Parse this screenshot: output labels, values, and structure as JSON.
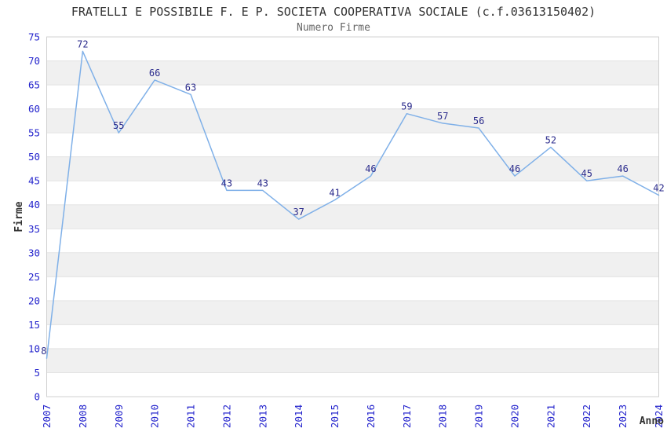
{
  "header": {
    "title": "FRATELLI E POSSIBILE F. E P. SOCIETA COOPERATIVA SOCIALE (c.f.03613150402)",
    "subtitle": "Numero Firme"
  },
  "chart_data": {
    "type": "line",
    "title": "FRATELLI E POSSIBILE F. E P. SOCIETA COOPERATIVA SOCIALE (c.f.03613150402)",
    "subtitle": "Numero Firme",
    "xlabel": "Anno",
    "ylabel": "Firme",
    "categories": [
      "2007",
      "2008",
      "2009",
      "2010",
      "2011",
      "2012",
      "2013",
      "2014",
      "2015",
      "2016",
      "2017",
      "2018",
      "2019",
      "2020",
      "2021",
      "2022",
      "2023",
      "2024"
    ],
    "values": [
      8,
      72,
      55,
      66,
      63,
      43,
      43,
      37,
      41,
      46,
      59,
      57,
      56,
      46,
      52,
      45,
      46,
      42
    ],
    "ylim": [
      0,
      75
    ],
    "ytick_step": 5,
    "yticks": [
      0,
      5,
      10,
      15,
      20,
      25,
      30,
      35,
      40,
      45,
      50,
      55,
      60,
      65,
      70,
      75
    ],
    "grid": "alternating horizontal bands every 5 units, light gray lines at each tick",
    "legend": "none",
    "data_labels": "above each point",
    "x_tick_rotation": -90,
    "colors": {
      "line": "#7FB0E8",
      "tick_label": "#2222CC",
      "data_label": "#2B2B8C",
      "band": "#F0F0F0",
      "grid_line": "#E3E3E3",
      "plot_border": "#D0D0D0",
      "title": "#333333",
      "subtitle": "#666666",
      "axis_title": "#333333",
      "plot_background": "#FFFFFF"
    }
  }
}
